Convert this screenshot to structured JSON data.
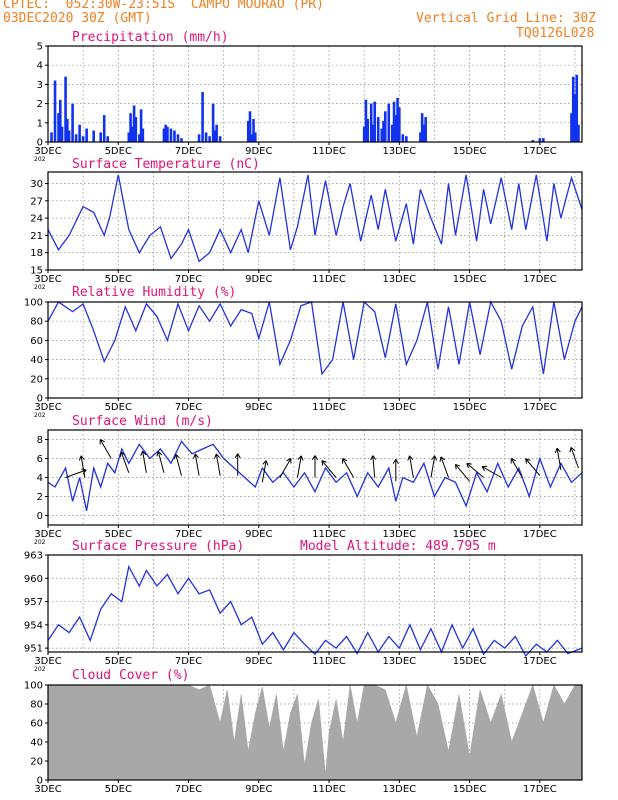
{
  "header": {
    "line1": "CPTEC:  052:30W-23:51S  CAMPO MOURAO (PR)",
    "line2_left": "03DEC2020 30Z (GMT)",
    "line2_right": "Vertical Grid Line: 30Z",
    "line3_right": "TQ0126L028"
  },
  "colors": {
    "line": "#2233dd",
    "bar": "#1133ee",
    "cloud": "#a8a8a8",
    "title": "#e0137a",
    "header": "#f08020"
  },
  "x_tick_labels": [
    "3DEC",
    "5DEC",
    "7DEC",
    "9DEC",
    "11DEC",
    "13DEC",
    "15DEC",
    "17DEC"
  ],
  "x_sublabel": "202",
  "chart_data": [
    {
      "id": "precip",
      "type": "bar",
      "title": "Precipitation (mm/h)",
      "ylim": [
        0,
        5
      ],
      "yticks": [
        0,
        1,
        2,
        3,
        4,
        5
      ],
      "grid": true,
      "x_range_days": [
        3,
        18.2
      ],
      "values_x": [
        3.1,
        3.2,
        3.3,
        3.35,
        3.4,
        3.5,
        3.55,
        3.6,
        3.7,
        3.8,
        3.9,
        4.0,
        4.1,
        4.3,
        4.5,
        4.6,
        4.7,
        5.3,
        5.35,
        5.4,
        5.45,
        5.5,
        5.6,
        5.65,
        5.7,
        6.3,
        6.35,
        6.4,
        6.5,
        6.6,
        6.7,
        6.8,
        7.3,
        7.4,
        7.5,
        7.6,
        7.7,
        7.75,
        7.8,
        7.9,
        8.7,
        8.75,
        8.8,
        8.85,
        8.9,
        12.0,
        12.05,
        12.1,
        12.2,
        12.25,
        12.3,
        12.4,
        12.5,
        12.55,
        12.6,
        12.7,
        12.8,
        12.85,
        12.9,
        12.95,
        13.0,
        13.1,
        13.2,
        13.6,
        13.65,
        13.7,
        13.75,
        16.8,
        17.0,
        17.1,
        17.9,
        17.95,
        18.0,
        18.05,
        18.1
      ],
      "values": [
        0.5,
        3.2,
        1.5,
        2.2,
        0.8,
        3.4,
        1.2,
        0.6,
        2.0,
        0.4,
        0.9,
        0.3,
        0.7,
        0.6,
        0.5,
        1.4,
        0.3,
        0.5,
        1.5,
        0.8,
        1.9,
        1.3,
        0.4,
        1.7,
        0.7,
        0.7,
        0.9,
        0.8,
        0.7,
        0.6,
        0.4,
        0.2,
        0.4,
        2.6,
        0.5,
        0.3,
        2.0,
        0.6,
        0.9,
        0.3,
        1.1,
        1.6,
        0.4,
        1.2,
        0.5,
        0.8,
        2.2,
        1.2,
        2.0,
        0.9,
        2.1,
        1.3,
        0.7,
        1.1,
        1.6,
        2.0,
        0.9,
        2.1,
        1.4,
        2.3,
        1.8,
        0.4,
        0.3,
        0.5,
        1.5,
        0.9,
        1.3,
        0.1,
        0.2,
        0.2,
        1.5,
        3.4,
        2.5,
        3.5,
        0.9
      ]
    },
    {
      "id": "temp",
      "type": "line",
      "title": "Surface Temperature (nC)",
      "ylim": [
        15,
        32
      ],
      "yticks": [
        15,
        18,
        21,
        24,
        27,
        30
      ],
      "grid": true,
      "x": [
        3.0,
        3.3,
        3.6,
        4.0,
        4.3,
        4.6,
        4.75,
        5.0,
        5.3,
        5.6,
        5.9,
        6.2,
        6.5,
        6.8,
        7.0,
        7.3,
        7.6,
        7.9,
        8.2,
        8.5,
        8.7,
        9.0,
        9.3,
        9.6,
        9.9,
        10.1,
        10.4,
        10.6,
        10.9,
        11.2,
        11.4,
        11.6,
        11.9,
        12.2,
        12.4,
        12.6,
        12.9,
        13.2,
        13.4,
        13.6,
        13.9,
        14.2,
        14.4,
        14.6,
        14.9,
        15.2,
        15.4,
        15.6,
        15.9,
        16.2,
        16.4,
        16.6,
        16.9,
        17.2,
        17.4,
        17.6,
        17.9,
        18.2
      ],
      "values": [
        22,
        18.5,
        21,
        26,
        25,
        21,
        24,
        31.5,
        22,
        18,
        21,
        22.5,
        17,
        19.5,
        22,
        16.5,
        18,
        22,
        18,
        22,
        18,
        27,
        21,
        31,
        18.5,
        22.5,
        31.5,
        21,
        30.5,
        21,
        26,
        30,
        20,
        28,
        22,
        29,
        20,
        26.5,
        19.5,
        29,
        24,
        19.5,
        30,
        21,
        31.5,
        20,
        29,
        23,
        31,
        22,
        30,
        22,
        31.5,
        20,
        30,
        24,
        31,
        25.5
      ]
    },
    {
      "id": "rh",
      "type": "line",
      "title": "Relative Humidity (%)",
      "ylim": [
        0,
        100
      ],
      "yticks": [
        0,
        20,
        40,
        60,
        80,
        100
      ],
      "grid": true,
      "x": [
        3.0,
        3.3,
        3.7,
        4.0,
        4.3,
        4.6,
        4.9,
        5.2,
        5.5,
        5.8,
        6.1,
        6.4,
        6.7,
        7.0,
        7.3,
        7.6,
        7.9,
        8.2,
        8.5,
        8.8,
        9.0,
        9.3,
        9.6,
        9.9,
        10.2,
        10.5,
        10.8,
        11.1,
        11.4,
        11.7,
        12.0,
        12.3,
        12.6,
        12.9,
        13.2,
        13.5,
        13.8,
        14.1,
        14.4,
        14.7,
        15.0,
        15.3,
        15.6,
        15.9,
        16.2,
        16.5,
        16.8,
        17.1,
        17.4,
        17.7,
        18.0,
        18.2
      ],
      "values": [
        80,
        100,
        90,
        98,
        70,
        38,
        60,
        95,
        70,
        98,
        85,
        60,
        98,
        70,
        96,
        80,
        98,
        75,
        92,
        88,
        62,
        100,
        35,
        60,
        96,
        100,
        25,
        40,
        100,
        40,
        100,
        90,
        42,
        98,
        35,
        60,
        100,
        30,
        95,
        35,
        100,
        45,
        100,
        80,
        30,
        75,
        95,
        25,
        100,
        40,
        80,
        95
      ]
    },
    {
      "id": "wind",
      "type": "line",
      "title": "Surface Wind (m/s)",
      "ylim": [
        -1,
        9
      ],
      "yticks": [
        0,
        2,
        4,
        6,
        8
      ],
      "grid": true,
      "x": [
        3.0,
        3.2,
        3.5,
        3.7,
        3.9,
        4.1,
        4.3,
        4.5,
        4.7,
        4.9,
        5.1,
        5.3,
        5.6,
        5.9,
        6.2,
        6.5,
        6.8,
        7.1,
        7.4,
        7.7,
        8.0,
        8.3,
        8.6,
        8.9,
        9.1,
        9.4,
        9.7,
        10.0,
        10.3,
        10.6,
        10.9,
        11.2,
        11.5,
        11.8,
        12.1,
        12.4,
        12.7,
        12.9,
        13.1,
        13.4,
        13.7,
        14.0,
        14.3,
        14.6,
        14.9,
        15.2,
        15.5,
        15.8,
        16.1,
        16.4,
        16.7,
        17.0,
        17.3,
        17.6,
        17.9,
        18.2
      ],
      "values": [
        3.5,
        3.0,
        5.0,
        1.5,
        4.0,
        0.5,
        5.0,
        3.0,
        5.5,
        4.5,
        7.0,
        5.5,
        7.5,
        6.0,
        7.0,
        5.5,
        7.8,
        6.5,
        7.0,
        7.5,
        6.0,
        5.0,
        4.0,
        3.0,
        5.0,
        3.5,
        4.5,
        3.0,
        4.5,
        2.5,
        5.0,
        3.5,
        4.5,
        2.0,
        4.5,
        3.0,
        5.0,
        1.5,
        4.0,
        3.5,
        5.5,
        2.0,
        4.0,
        3.5,
        1.0,
        4.5,
        2.5,
        5.5,
        3.0,
        5.0,
        2.0,
        6.0,
        3.0,
        5.5,
        3.5,
        4.5
      ],
      "arrows_x": [
        3.5,
        4.05,
        4.8,
        5.3,
        5.8,
        6.3,
        6.8,
        7.3,
        7.9,
        8.4,
        9.1,
        9.6,
        10.1,
        10.6,
        11.2,
        11.7,
        12.3,
        12.9,
        13.4,
        13.9,
        14.4,
        15.0,
        15.4,
        15.9,
        16.5,
        17.0,
        17.6,
        18.1
      ],
      "arrows_speed": [
        4,
        4,
        6,
        4.5,
        4.5,
        4.5,
        4.2,
        4.2,
        4.2,
        4.2,
        3.5,
        4,
        4,
        4,
        4,
        4,
        4,
        3.6,
        4,
        4,
        4,
        3.6,
        4,
        4,
        4,
        4.2,
        4.8,
        5
      ],
      "arrows_dir_deg": [
        20,
        100,
        120,
        110,
        100,
        105,
        105,
        100,
        100,
        90,
        80,
        60,
        80,
        90,
        130,
        120,
        95,
        90,
        100,
        80,
        110,
        130,
        140,
        150,
        120,
        130,
        100,
        110
      ]
    },
    {
      "id": "pressure",
      "type": "line",
      "title": "Surface Pressure (hPa)",
      "annotation": "Model Altitude: 489.795 m",
      "ylim": [
        950.5,
        963
      ],
      "yticks": [
        951,
        954,
        957,
        960,
        963
      ],
      "grid": true,
      "x": [
        3.0,
        3.3,
        3.6,
        3.9,
        4.2,
        4.5,
        4.8,
        5.1,
        5.3,
        5.6,
        5.8,
        6.1,
        6.4,
        6.7,
        7.0,
        7.3,
        7.6,
        7.9,
        8.2,
        8.5,
        8.8,
        9.1,
        9.4,
        9.7,
        10.0,
        10.3,
        10.6,
        10.9,
        11.2,
        11.5,
        11.8,
        12.1,
        12.4,
        12.7,
        13.0,
        13.3,
        13.6,
        13.9,
        14.2,
        14.5,
        14.8,
        15.1,
        15.4,
        15.7,
        16.0,
        16.3,
        16.6,
        16.9,
        17.2,
        17.5,
        17.8,
        18.2
      ],
      "values": [
        952,
        954,
        953,
        955,
        952,
        956,
        958,
        957,
        961.5,
        959,
        961,
        959,
        960.5,
        958,
        960,
        958,
        958.5,
        955.5,
        957,
        954,
        955,
        951.5,
        953,
        950.8,
        953,
        951.5,
        950.2,
        952,
        951,
        952.5,
        950.3,
        953,
        950.5,
        952.5,
        951,
        954,
        950.8,
        953.5,
        950.5,
        954,
        951,
        953.5,
        950.2,
        952,
        951,
        952.5,
        950,
        951.5,
        950.5,
        952,
        950.3,
        951
      ]
    },
    {
      "id": "cloud",
      "type": "area",
      "title": "Cloud Cover (%)",
      "ylim": [
        0,
        100
      ],
      "yticks": [
        0,
        20,
        40,
        60,
        80,
        100
      ],
      "grid": true,
      "x": [
        3.0,
        3.3,
        3.6,
        4.0,
        4.3,
        4.6,
        5.0,
        5.3,
        5.6,
        6.0,
        6.3,
        6.6,
        7.0,
        7.3,
        7.6,
        7.9,
        8.1,
        8.3,
        8.5,
        8.7,
        8.9,
        9.1,
        9.3,
        9.5,
        9.7,
        9.9,
        10.1,
        10.3,
        10.5,
        10.7,
        10.9,
        11.0,
        11.2,
        11.4,
        11.6,
        11.8,
        12.0,
        12.3,
        12.6,
        12.9,
        13.2,
        13.5,
        13.8,
        14.1,
        14.4,
        14.7,
        15.0,
        15.3,
        15.6,
        15.9,
        16.2,
        16.5,
        16.8,
        17.1,
        17.4,
        17.7,
        18.0,
        18.2
      ],
      "values": [
        100,
        100,
        100,
        100,
        100,
        100,
        100,
        100,
        100,
        100,
        100,
        100,
        100,
        95,
        100,
        60,
        95,
        40,
        90,
        30,
        70,
        98,
        55,
        90,
        30,
        70,
        90,
        15,
        60,
        85,
        5,
        50,
        85,
        40,
        100,
        60,
        100,
        100,
        95,
        60,
        100,
        45,
        100,
        80,
        30,
        90,
        25,
        95,
        60,
        90,
        40,
        70,
        100,
        60,
        100,
        80,
        100,
        100
      ]
    }
  ]
}
